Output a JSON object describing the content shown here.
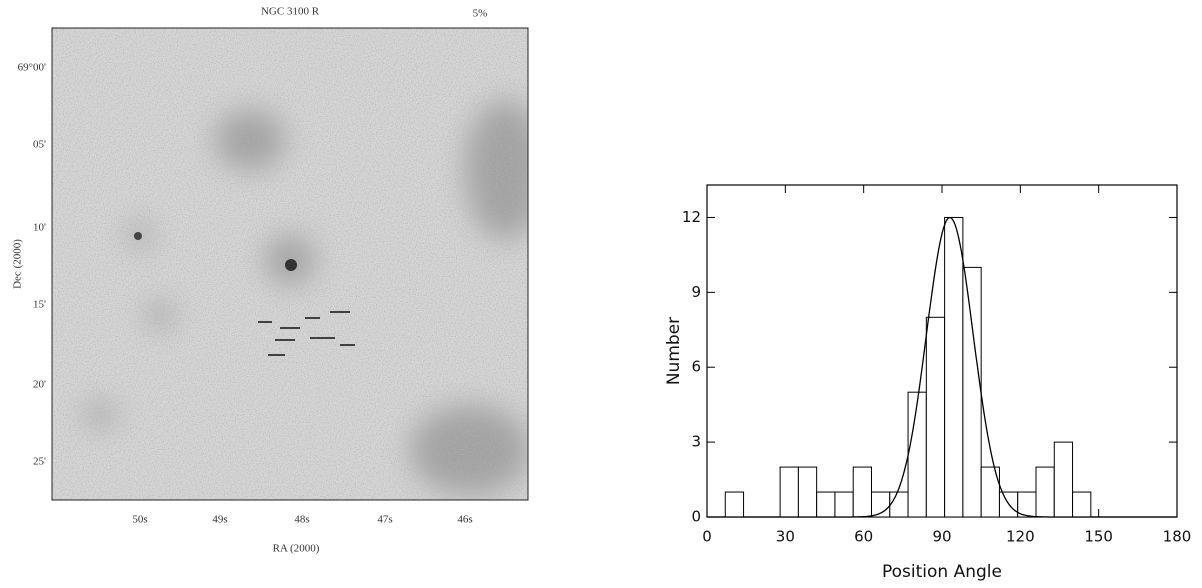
{
  "chart_data": [
    {
      "type": "image",
      "title": "NGC 3100 R",
      "corner_label": "5%",
      "y_tick_labels": [
        "69°00'",
        "05'",
        "10'",
        "15'",
        "20'",
        "25'"
      ],
      "x_tick_labels": [
        "50s",
        "49s",
        "48s",
        "47s",
        "46s"
      ],
      "ylabel": "Dec (2000)",
      "xlabel": "RA (2000)"
    },
    {
      "type": "histogram",
      "xlabel": "Position Angle",
      "ylabel": "Number",
      "bins": [
        0,
        7,
        14,
        21,
        28,
        35,
        42,
        49,
        56,
        63,
        70,
        77,
        84,
        91,
        98,
        105,
        112,
        119,
        126,
        133,
        140,
        147
      ],
      "values": [
        0,
        1,
        0,
        0,
        2,
        2,
        1,
        1,
        2,
        1,
        1,
        5,
        8,
        12,
        10,
        2,
        1,
        1,
        2,
        3,
        1
      ],
      "color": "#ffffff",
      "fit": {
        "mean": 93,
        "sigma": 9,
        "peak": 12
      },
      "xlim": [
        0,
        180
      ],
      "xticks": [
        0,
        30,
        60,
        90,
        120,
        150,
        180
      ],
      "ylim": [
        0,
        13.3
      ],
      "yticks": [
        0,
        3,
        6,
        9,
        12
      ]
    }
  ]
}
